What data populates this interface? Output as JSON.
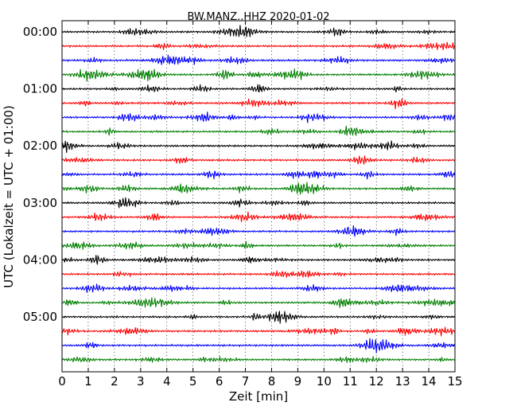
{
  "chart_data": {
    "type": "line",
    "title": "BW.MANZ..HHZ 2020-01-02",
    "xlabel": "Zeit  [min]",
    "ylabel": "UTC (Lokalzeit = UTC + 01:00)",
    "xlim": [
      0,
      15
    ],
    "x_ticks": [
      "0",
      "1",
      "2",
      "3",
      "4",
      "5",
      "6",
      "7",
      "8",
      "9",
      "10",
      "11",
      "12",
      "13",
      "14",
      "15"
    ],
    "y_ticks": [
      "00:00",
      "01:00",
      "02:00",
      "03:00",
      "04:00",
      "05:00"
    ],
    "trace_count": 24,
    "trace_interval_minutes": 15,
    "trace_colors": [
      "#000000",
      "#ff0000",
      "#0000ff",
      "#007f00"
    ],
    "grid": "vertical dotted lines at each minute"
  }
}
